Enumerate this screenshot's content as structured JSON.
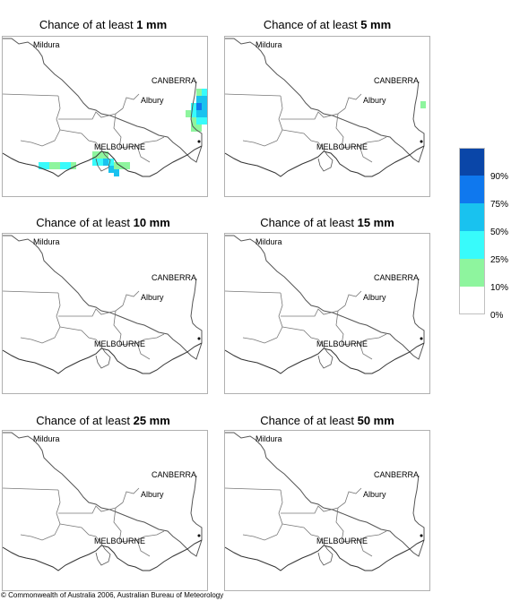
{
  "panels": [
    {
      "title_prefix": "Chance of at least ",
      "amount": "1 mm"
    },
    {
      "title_prefix": "Chance of at least ",
      "amount": "5 mm"
    },
    {
      "title_prefix": "Chance of at least ",
      "amount": "10 mm"
    },
    {
      "title_prefix": "Chance of at least ",
      "amount": "15 mm"
    },
    {
      "title_prefix": "Chance of at least ",
      "amount": "25 mm"
    },
    {
      "title_prefix": "Chance of at least ",
      "amount": "50 mm"
    }
  ],
  "places": {
    "mildura": "Mildura",
    "canberra": "CANBERRA",
    "albury": "Albury",
    "melbourne": "MELBOURNE"
  },
  "legend": {
    "labels": [
      "90%",
      "75%",
      "50%",
      "25%",
      "10%",
      "0%"
    ],
    "colors": [
      "#0a46a8",
      "#0f78ee",
      "#19c2ef",
      "#38fbfb",
      "#8ef59e",
      "#ffffff"
    ]
  },
  "copyright": "© Commonwealth of Australia 2006, Australian Bureau of Meteorology"
}
